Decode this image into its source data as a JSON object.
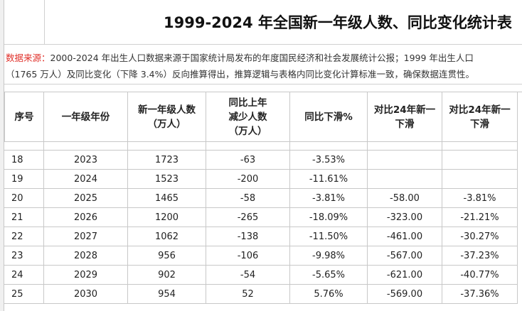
{
  "title": "1999-2024 年全国新一年级人数、同比变化统计表",
  "note": {
    "label": "数据来源：",
    "lines": [
      "2000-2024 年出生人口数据来源于国家统计局发布的年度国民经济和社会发展统计公报；1999 年出生人口",
      "（1765 万人）及同比变化（下降 3.4%）反向推算得出，推算逻辑与表格内同比变化计算标准一致，确保数据连贯性。"
    ]
  },
  "table": {
    "header": [
      [
        "序号"
      ],
      [
        "一年级年份"
      ],
      [
        "新一年级人数",
        "（万人）"
      ],
      [
        "同比上年",
        "减少人数",
        "（万人）"
      ],
      [
        "同比下滑%"
      ],
      [
        "对比24年新一",
        "下滑"
      ],
      [
        "对比24年新一",
        "下滑"
      ]
    ],
    "rows": [
      [
        "18",
        "2023",
        "1723",
        "-63",
        "-3.53%",
        null,
        null
      ],
      [
        "19",
        "2024",
        "1523",
        "-200",
        "-11.61%",
        null,
        null
      ],
      [
        "20",
        "2025",
        "1465",
        "-58",
        "-3.81%",
        "-58.00",
        "-3.81%"
      ],
      [
        "21",
        "2026",
        "1200",
        "-265",
        "-18.09%",
        "-323.00",
        "-21.21%"
      ],
      [
        "22",
        "2027",
        "1062",
        "-138",
        "-11.50%",
        "-461.00",
        "-30.27%"
      ],
      [
        "23",
        "2028",
        "956",
        "-106",
        "-9.98%",
        "-567.00",
        "-37.23%"
      ],
      [
        "24",
        "2029",
        "902",
        "-54",
        "-5.65%",
        "-621.00",
        "-40.77%"
      ],
      [
        "25",
        "2030",
        "954",
        "52",
        "5.76%",
        "-569.00",
        "-37.36%"
      ]
    ]
  }
}
